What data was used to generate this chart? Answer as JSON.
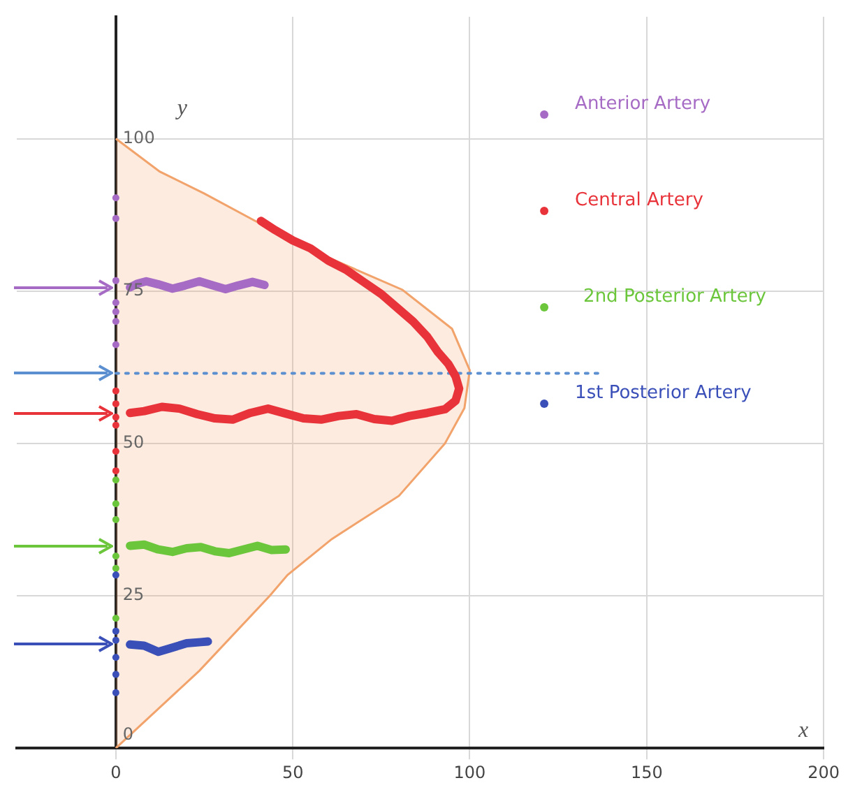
{
  "chart_data": {
    "type": "line",
    "xlabel": "x",
    "ylabel": "y",
    "xlim": [
      -28,
      200
    ],
    "ylim": [
      0,
      120
    ],
    "xticks": [
      0,
      50,
      100,
      150,
      200
    ],
    "yticks": [
      0,
      25,
      50,
      75,
      100
    ],
    "grid": true,
    "legend": "top right",
    "series": [
      {
        "type": "area",
        "color": "#f2a36b",
        "x": [
          0,
          12.4,
          25,
          41,
          60,
          81,
          95,
          100,
          98.5,
          93,
          80,
          61,
          48.5,
          43.5,
          23.6,
          0
        ],
        "values": [
          100,
          94.6,
          91,
          86,
          80.5,
          75.2,
          68.8,
          62,
          55.8,
          50,
          41.4,
          34.3,
          28.4,
          25,
          12.7,
          0
        ]
      },
      {
        "name": "Anterior Artery",
        "color": "#a66bc4",
        "x": [
          4,
          6,
          8.6,
          12,
          16,
          19.5,
          23.6,
          27,
          31,
          34.5,
          38.6,
          42
        ],
        "values": [
          75.6,
          76.2,
          76.6,
          76.1,
          75.4,
          75.9,
          76.6,
          76,
          75.3,
          75.9,
          76.5,
          76
        ]
      },
      {
        "name": "Central Artery",
        "color": "#e8333a",
        "x": [
          41,
          45,
          50,
          55,
          60,
          65,
          70,
          75,
          80,
          84,
          88,
          91,
          94,
          96,
          97,
          96,
          93,
          88,
          83,
          78,
          73,
          68,
          63,
          58,
          53,
          48,
          43,
          38,
          33,
          28,
          23,
          18,
          13,
          8,
          4
        ],
        "values": [
          86.5,
          85,
          83.3,
          82,
          80,
          78.5,
          76.5,
          74.5,
          72,
          70,
          67.5,
          65,
          63,
          61,
          59,
          57,
          55.6,
          55,
          54.5,
          53.7,
          54,
          54.8,
          54.5,
          53.9,
          54.1,
          54.9,
          55.7,
          55,
          53.9,
          54.1,
          54.8,
          55.7,
          56,
          55.3,
          55
        ]
      },
      {
        "name": "2nd Posterior Artery",
        "color": "#6cc63c",
        "x": [
          4,
          8,
          12,
          16,
          20,
          24,
          28,
          32,
          36,
          40,
          44,
          48
        ],
        "values": [
          33.2,
          33.4,
          32.6,
          32.2,
          32.8,
          33,
          32.3,
          32,
          32.6,
          33.2,
          32.5,
          32.6
        ]
      },
      {
        "name": "1st Posterior Artery",
        "color": "#3a4fb8",
        "x": [
          4,
          8,
          12,
          16,
          20,
          24,
          26
        ],
        "values": [
          17,
          16.8,
          15.8,
          16.5,
          17.2,
          17.4,
          17.5
        ]
      },
      {
        "color": "#5b8fd0",
        "line_style": "dotted",
        "x": [
          0,
          137
        ],
        "values": [
          61.5,
          61.5
        ]
      },
      {
        "type": "scatter",
        "x": [
          0,
          0,
          0,
          0,
          0,
          0,
          0,
          0,
          0,
          0,
          0,
          0,
          0,
          0,
          0,
          0,
          0,
          0,
          0,
          0,
          0,
          0,
          0,
          0,
          0
        ],
        "values": [
          90.3,
          86.9,
          76.7,
          73.1,
          71.6,
          70,
          66.2,
          58.6,
          56.5,
          54.3,
          53,
          48.7,
          45.5,
          44,
          40.1,
          37.5,
          31.5,
          29.5,
          21.3,
          28.4,
          19.2,
          17.7,
          14.9,
          12.1,
          9.1
        ],
        "colors": [
          "#a66bc4",
          "#a66bc4",
          "#a66bc4",
          "#a66bc4",
          "#a66bc4",
          "#a66bc4",
          "#a66bc4",
          "#e8333a",
          "#e8333a",
          "#e8333a",
          "#e8333a",
          "#e8333a",
          "#e8333a",
          "#6cc63c",
          "#6cc63c",
          "#6cc63c",
          "#6cc63c",
          "#6cc63c",
          "#6cc63c",
          "#3a4fb8",
          "#3a4fb8",
          "#3a4fb8",
          "#3a4fb8",
          "#3a4fb8",
          "#3a4fb8"
        ]
      }
    ]
  }
}
